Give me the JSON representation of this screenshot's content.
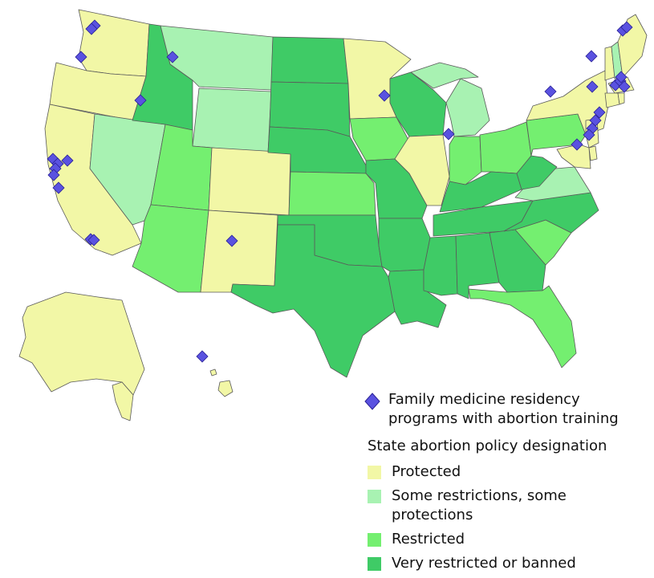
{
  "colors": {
    "protected": "#f2f7a6",
    "some_restrictions": "#a8f2b2",
    "restricted": "#74ef70",
    "very_restricted": "#3fcb66",
    "program_marker": "#5a52e0",
    "marker_outline": "#2a2196",
    "border": "#5a5a5a"
  },
  "icons": {
    "program_marker": "diamond"
  },
  "legend": {
    "program_label": "Family medicine residency programs with abortion training",
    "policy_heading": "State abortion policy designation",
    "categories": [
      {
        "key": "protected",
        "label": "Protected"
      },
      {
        "key": "some_restrictions",
        "label": "Some restrictions, some protections"
      },
      {
        "key": "restricted",
        "label": "Restricted"
      },
      {
        "key": "very_restricted",
        "label": "Very restricted or banned"
      }
    ]
  }
}
